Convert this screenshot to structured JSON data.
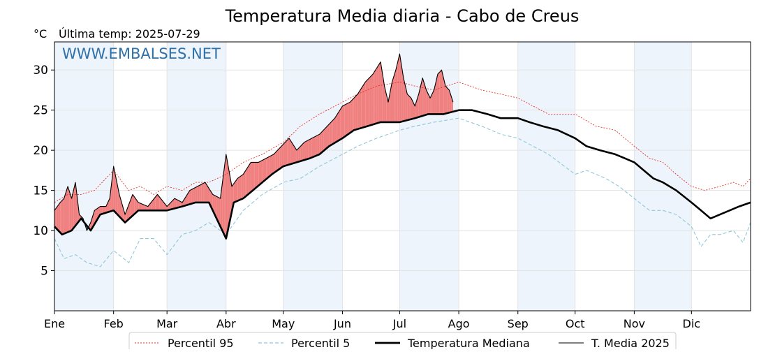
{
  "chart_data": {
    "type": "line",
    "title": "Temperatura Media diaria - Cabo de Creus",
    "unit_label": "°C",
    "subtitle": "Última temp: 2025-07-29",
    "watermark": "WWW.EMBALSES.NET",
    "xlim": [
      1,
      366
    ],
    "ylim": [
      0,
      33.5
    ],
    "y_ticks": [
      5,
      10,
      15,
      20,
      25,
      30
    ],
    "grid": true,
    "legend_position": "bottom",
    "months": [
      {
        "label": "Ene",
        "start_day": 1
      },
      {
        "label": "Feb",
        "start_day": 32
      },
      {
        "label": "Mar",
        "start_day": 60
      },
      {
        "label": "Abr",
        "start_day": 91
      },
      {
        "label": "May",
        "start_day": 121
      },
      {
        "label": "Jun",
        "start_day": 152
      },
      {
        "label": "Jul",
        "start_day": 182
      },
      {
        "label": "Ago",
        "start_day": 213
      },
      {
        "label": "Sep",
        "start_day": 244
      },
      {
        "label": "Oct",
        "start_day": 274
      },
      {
        "label": "Nov",
        "start_day": 305
      },
      {
        "label": "Dic",
        "start_day": 335
      }
    ],
    "colors": {
      "p95": "#e8302a",
      "p5": "#8fc7d9",
      "median": "#000000",
      "current": "#000000",
      "above_median_fill": "#f08080",
      "below_median_fill": "#4f86b8",
      "shade": "#eef4fb",
      "title": "#2f70a8",
      "grid": "#e3e3e3"
    },
    "series": [
      {
        "key": "p95",
        "name": "Percentil 95",
        "style": "dotted",
        "days": [
          1,
          8,
          15,
          22,
          32,
          40,
          46,
          53,
          60,
          68,
          75,
          82,
          91,
          100,
          110,
          121,
          130,
          140,
          152,
          160,
          170,
          182,
          190,
          200,
          213,
          225,
          235,
          244,
          252,
          260,
          274,
          285,
          295,
          305,
          313,
          320,
          327,
          335,
          342,
          350,
          357,
          362,
          366
        ],
        "values": [
          13.5,
          14.5,
          14.5,
          15.0,
          17.5,
          15.0,
          15.5,
          14.5,
          15.5,
          15.0,
          16.0,
          16.0,
          17.0,
          18.5,
          19.5,
          21.0,
          23.0,
          24.5,
          26.0,
          27.0,
          28.0,
          28.5,
          28.0,
          27.5,
          28.5,
          27.5,
          27.0,
          26.5,
          25.5,
          24.5,
          24.5,
          23.0,
          22.5,
          20.5,
          19.0,
          18.5,
          17.0,
          15.5,
          15.0,
          15.5,
          16.0,
          15.5,
          16.5
        ]
      },
      {
        "key": "p5",
        "name": "Percentil 5",
        "style": "dashed",
        "days": [
          1,
          6,
          12,
          18,
          25,
          32,
          40,
          46,
          53,
          60,
          68,
          75,
          82,
          91,
          100,
          110,
          121,
          130,
          140,
          152,
          160,
          170,
          182,
          190,
          200,
          213,
          225,
          235,
          244,
          252,
          260,
          274,
          280,
          290,
          297,
          305,
          313,
          320,
          327,
          335,
          340,
          345,
          350,
          357,
          362,
          366
        ],
        "values": [
          9.0,
          6.5,
          7.0,
          6.0,
          5.5,
          7.5,
          6.0,
          9.0,
          9.0,
          7.0,
          9.5,
          10.0,
          11.0,
          9.5,
          12.5,
          14.5,
          16.0,
          16.5,
          18.0,
          19.5,
          20.5,
          21.5,
          22.5,
          23.0,
          23.5,
          24.0,
          23.0,
          22.0,
          21.5,
          20.5,
          19.5,
          17.0,
          17.5,
          16.5,
          15.5,
          14.0,
          12.5,
          12.5,
          12.0,
          10.5,
          8.0,
          9.5,
          9.5,
          10.0,
          8.5,
          11.0
        ]
      },
      {
        "key": "median",
        "name": "Temperatura Mediana",
        "style": "bold",
        "days": [
          1,
          5,
          10,
          15,
          20,
          25,
          32,
          38,
          45,
          52,
          60,
          68,
          75,
          82,
          91,
          95,
          100,
          105,
          110,
          115,
          121,
          128,
          135,
          140,
          145,
          152,
          158,
          165,
          172,
          182,
          190,
          197,
          205,
          213,
          220,
          228,
          235,
          244,
          250,
          257,
          265,
          274,
          280,
          287,
          295,
          300,
          305,
          310,
          315,
          320,
          327,
          335,
          340,
          345,
          350,
          355,
          360,
          366
        ],
        "values": [
          10.5,
          9.5,
          10.0,
          11.5,
          10.0,
          12.0,
          12.5,
          11.0,
          12.5,
          12.5,
          12.5,
          13.0,
          13.5,
          13.5,
          9.0,
          13.5,
          14.0,
          15.0,
          16.0,
          17.0,
          18.0,
          18.5,
          19.0,
          19.5,
          20.5,
          21.5,
          22.5,
          23.0,
          23.5,
          23.5,
          24.0,
          24.5,
          24.5,
          25.0,
          25.0,
          24.5,
          24.0,
          24.0,
          23.5,
          23.0,
          22.5,
          21.5,
          20.5,
          20.0,
          19.5,
          19.0,
          18.5,
          17.5,
          16.5,
          16.0,
          15.0,
          13.5,
          12.5,
          11.5,
          12.0,
          12.5,
          13.0,
          13.5
        ]
      },
      {
        "key": "current",
        "name": "T. Media 2025",
        "style": "thin",
        "days": [
          1,
          4,
          6,
          8,
          10,
          12,
          14,
          16,
          18,
          20,
          22,
          25,
          28,
          30,
          32,
          35,
          38,
          42,
          45,
          50,
          55,
          60,
          64,
          68,
          72,
          76,
          80,
          84,
          88,
          91,
          94,
          97,
          100,
          104,
          108,
          112,
          116,
          120,
          124,
          128,
          132,
          136,
          140,
          144,
          148,
          152,
          156,
          160,
          164,
          168,
          172,
          174,
          176,
          178,
          180,
          182,
          184,
          186,
          188,
          190,
          192,
          194,
          196,
          198,
          200,
          202,
          204,
          206,
          208,
          210
        ],
        "values": [
          12.5,
          13.5,
          14.0,
          15.5,
          14.0,
          16.0,
          12.0,
          11.5,
          10.0,
          11.0,
          12.5,
          13.0,
          13.0,
          14.0,
          18.0,
          14.5,
          12.0,
          14.5,
          13.5,
          13.0,
          14.5,
          13.0,
          14.0,
          13.5,
          15.0,
          15.5,
          16.0,
          14.5,
          14.0,
          19.5,
          15.5,
          16.5,
          17.0,
          18.5,
          18.5,
          19.0,
          19.5,
          20.5,
          21.5,
          20.0,
          21.0,
          21.5,
          22.0,
          23.0,
          24.0,
          25.5,
          26.0,
          27.0,
          28.5,
          29.5,
          31.0,
          28.0,
          26.0,
          28.5,
          30.0,
          32.0,
          29.0,
          27.0,
          26.5,
          25.5,
          27.0,
          29.0,
          27.5,
          26.5,
          27.5,
          29.5,
          30.0,
          28.0,
          27.5,
          26.0
        ]
      }
    ]
  }
}
